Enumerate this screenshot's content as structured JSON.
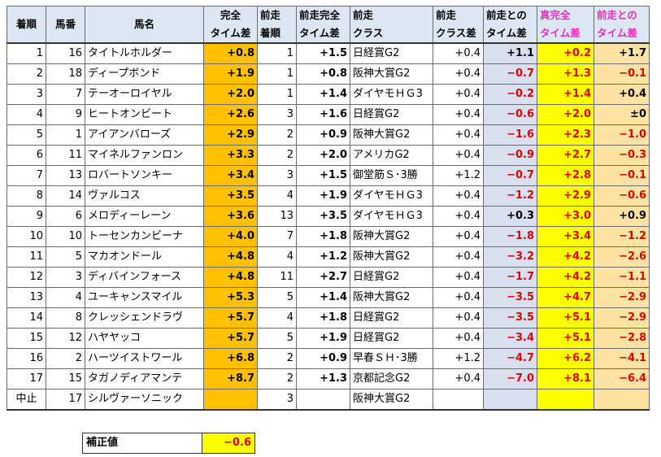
{
  "header": {
    "rank": "着順",
    "num": "馬番",
    "name": "馬名",
    "complete_1": "完全",
    "complete_2": "タイム差",
    "prev_rank_1": "前走",
    "prev_rank_2": "着順",
    "prev_time_1": "前走完全",
    "prev_time_2": "タイム差",
    "prev_class_1": "前走",
    "prev_class_2": "クラス",
    "class_diff_1": "前走",
    "class_diff_2": "クラス差",
    "vs_prev_1": "前走との",
    "vs_prev_2": "タイム差",
    "true_1": "真完全",
    "true_2": "タイム差",
    "true_vs_1": "前走との",
    "true_vs_2": "タイム差"
  },
  "rows": [
    {
      "rank": "1",
      "num": "16",
      "name": "タイトルホルダー",
      "t": "+0.8",
      "pr": "1",
      "pt": "+1.5",
      "pc": "日経賞G2",
      "cd": "+0.4",
      "vp": "+1.1",
      "tt": "+0.2",
      "tv": "+1.7"
    },
    {
      "rank": "2",
      "num": "18",
      "name": "ディープボンド",
      "t": "+1.9",
      "pr": "1",
      "pt": "+0.8",
      "pc": "阪神大賞G2",
      "cd": "+0.4",
      "vp": "−0.7",
      "tt": "+1.3",
      "tv": "−0.1"
    },
    {
      "rank": "3",
      "num": "7",
      "name": "テーオーロイヤル",
      "t": "+2.0",
      "pr": "1",
      "pt": "+1.4",
      "pc": "ダイヤモＨＧ3",
      "cd": "+0.4",
      "vp": "−0.2",
      "tt": "+1.4",
      "tv": "+0.4"
    },
    {
      "rank": "4",
      "num": "9",
      "name": "ヒートオンビート",
      "t": "+2.6",
      "pr": "3",
      "pt": "+1.6",
      "pc": "日経賞G2",
      "cd": "+0.4",
      "vp": "−0.6",
      "tt": "+2.0",
      "tv": "±0"
    },
    {
      "rank": "5",
      "num": "1",
      "name": "アイアンバローズ",
      "t": "+2.9",
      "pr": "2",
      "pt": "+0.9",
      "pc": "阪神大賞G2",
      "cd": "+0.4",
      "vp": "−1.6",
      "tt": "+2.3",
      "tv": "−1.0"
    },
    {
      "rank": "6",
      "num": "11",
      "name": "マイネルファンロン",
      "t": "+3.3",
      "pr": "2",
      "pt": "+2.0",
      "pc": "アメリカG2",
      "cd": "+0.4",
      "vp": "−0.9",
      "tt": "+2.7",
      "tv": "−0.3"
    },
    {
      "rank": "7",
      "num": "13",
      "name": "ロバートソンキー",
      "t": "+3.4",
      "pr": "3",
      "pt": "+1.5",
      "pc": "御堂筋Ｓ･3勝",
      "cd": "+1.2",
      "vp": "−0.7",
      "tt": "+2.8",
      "tv": "−0.1"
    },
    {
      "rank": "8",
      "num": "14",
      "name": "ヴァルコス",
      "t": "+3.5",
      "pr": "4",
      "pt": "+1.9",
      "pc": "ダイヤモＨＧ3",
      "cd": "+0.4",
      "vp": "−1.2",
      "tt": "+2.9",
      "tv": "−0.6"
    },
    {
      "rank": "9",
      "num": "6",
      "name": "メロディーレーン",
      "t": "+3.6",
      "pr": "13",
      "pt": "+3.5",
      "pc": "ダイヤモＨＧ3",
      "cd": "+0.4",
      "vp": "+0.3",
      "tt": "+3.0",
      "tv": "+0.9"
    },
    {
      "rank": "10",
      "num": "10",
      "name": "トーセンカンビーナ",
      "t": "+4.0",
      "pr": "7",
      "pt": "+1.8",
      "pc": "阪神大賞G2",
      "cd": "+0.4",
      "vp": "−1.8",
      "tt": "+3.4",
      "tv": "−1.2"
    },
    {
      "rank": "11",
      "num": "5",
      "name": "マカオンドール",
      "t": "+4.8",
      "pr": "4",
      "pt": "+1.2",
      "pc": "阪神大賞G2",
      "cd": "+0.4",
      "vp": "−3.2",
      "tt": "+4.2",
      "tv": "−2.6"
    },
    {
      "rank": "12",
      "num": "3",
      "name": "ディバインフォース",
      "t": "+4.8",
      "pr": "11",
      "pt": "+2.7",
      "pc": "日経賞G2",
      "cd": "+0.4",
      "vp": "−1.7",
      "tt": "+4.2",
      "tv": "−1.1"
    },
    {
      "rank": "13",
      "num": "4",
      "name": "ユーキャンスマイル",
      "t": "+5.3",
      "pr": "5",
      "pt": "+1.4",
      "pc": "阪神大賞G2",
      "cd": "+0.4",
      "vp": "−3.5",
      "tt": "+4.7",
      "tv": "−2.9"
    },
    {
      "rank": "14",
      "num": "8",
      "name": "クレッシェンドラヴ",
      "t": "+5.7",
      "pr": "4",
      "pt": "+1.8",
      "pc": "日経賞G2",
      "cd": "+0.4",
      "vp": "−3.5",
      "tt": "+5.1",
      "tv": "−2.9"
    },
    {
      "rank": "15",
      "num": "12",
      "name": "ハヤヤッコ",
      "t": "+5.7",
      "pr": "5",
      "pt": "+1.9",
      "pc": "日経賞G2",
      "cd": "+0.4",
      "vp": "−3.4",
      "tt": "+5.1",
      "tv": "−2.8"
    },
    {
      "rank": "16",
      "num": "2",
      "name": "ハーツイストワール",
      "t": "+6.8",
      "pr": "2",
      "pt": "+0.9",
      "pc": "早春ＳＨ･3勝",
      "cd": "+1.2",
      "vp": "−4.7",
      "tt": "+6.2",
      "tv": "−4.1"
    },
    {
      "rank": "17",
      "num": "15",
      "name": "タガノディアマンテ",
      "t": "+8.7",
      "pr": "2",
      "pt": "+1.3",
      "pc": "京都記念G2",
      "cd": "+0.4",
      "vp": "−7.0",
      "tt": "+8.1",
      "tv": "−6.4"
    },
    {
      "rank": "中止",
      "num": "17",
      "name": "シルヴァーソニック",
      "t": "",
      "pr": "3",
      "pt": "",
      "pc": "阪神大賞G2",
      "cd": "",
      "vp": "",
      "tt": "",
      "tv": ""
    }
  ],
  "correction": {
    "label": "補正値",
    "value": "−0.6"
  }
}
